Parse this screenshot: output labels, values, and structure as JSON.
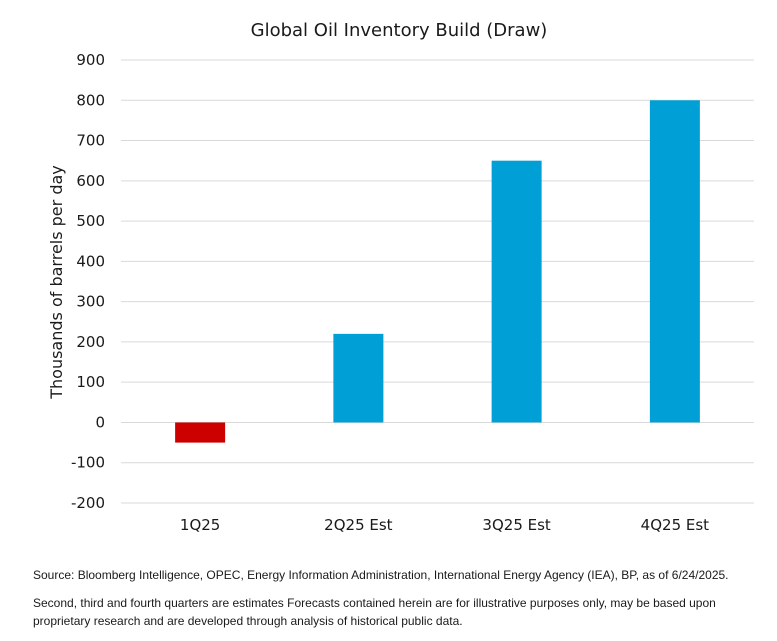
{
  "chart_data": {
    "type": "bar",
    "title": "Global Oil Inventory Build (Draw)",
    "xlabel": "",
    "ylabel": "Thousands of barrels per day",
    "categories": [
      "1Q25",
      "2Q25 Est",
      "3Q25 Est",
      "4Q25 Est"
    ],
    "values": [
      -50,
      220,
      650,
      800
    ],
    "bar_colors": [
      "#cc0000",
      "#00a0d6",
      "#00a0d6",
      "#00a0d6"
    ],
    "ylim": [
      -200,
      900
    ],
    "yticks": [
      900,
      800,
      700,
      600,
      500,
      400,
      300,
      200,
      100,
      0,
      -100,
      -200
    ],
    "grid": true,
    "legend": "none"
  },
  "footnotes": {
    "source": "Source: Bloomberg Intelligence, OPEC, Energy Information Administration, International Energy Agency (IEA), BP, as of 6/24/2025.",
    "note": "Second, third and fourth quarters are estimates Forecasts contained herein are for illustrative purposes only, may be based upon proprietary research and are developed through analysis of historical public data."
  }
}
